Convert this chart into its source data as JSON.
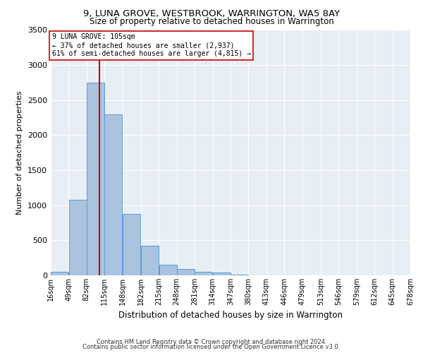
{
  "title": "9, LUNA GROVE, WESTBROOK, WARRINGTON, WA5 8AY",
  "subtitle": "Size of property relative to detached houses in Warrington",
  "xlabel": "Distribution of detached houses by size in Warrington",
  "ylabel": "Number of detached properties",
  "footer1": "Contains HM Land Registry data © Crown copyright and database right 2024.",
  "footer2": "Contains public sector information licensed under the Open Government Licence v3.0.",
  "annotation_title": "9 LUNA GROVE: 105sqm",
  "annotation_line1": "← 37% of detached houses are smaller (2,937)",
  "annotation_line2": "61% of semi-detached houses are larger (4,815) →",
  "property_size": 105,
  "bar_color": "#aac4e0",
  "bar_edge_color": "#5b9bd5",
  "vline_color": "#cc0000",
  "annotation_box_color": "#ffffff",
  "annotation_box_edge": "#cc0000",
  "background_color": "#e8eef5",
  "bin_edges": [
    16,
    49,
    82,
    115,
    148,
    182,
    215,
    248,
    281,
    314,
    347,
    380,
    413,
    446,
    479,
    513,
    546,
    579,
    612,
    645,
    678
  ],
  "bin_labels": [
    "16sqm",
    "49sqm",
    "82sqm",
    "115sqm",
    "148sqm",
    "182sqm",
    "215sqm",
    "248sqm",
    "281sqm",
    "314sqm",
    "347sqm",
    "380sqm",
    "413sqm",
    "446sqm",
    "479sqm",
    "513sqm",
    "546sqm",
    "579sqm",
    "612sqm",
    "645sqm",
    "678sqm"
  ],
  "counts": [
    50,
    1080,
    2750,
    2300,
    880,
    420,
    155,
    90,
    55,
    40,
    15,
    5,
    2,
    0,
    0,
    0,
    0,
    0,
    0,
    0
  ],
  "ylim": [
    0,
    3500
  ],
  "yticks": [
    0,
    500,
    1000,
    1500,
    2000,
    2500,
    3000,
    3500
  ]
}
